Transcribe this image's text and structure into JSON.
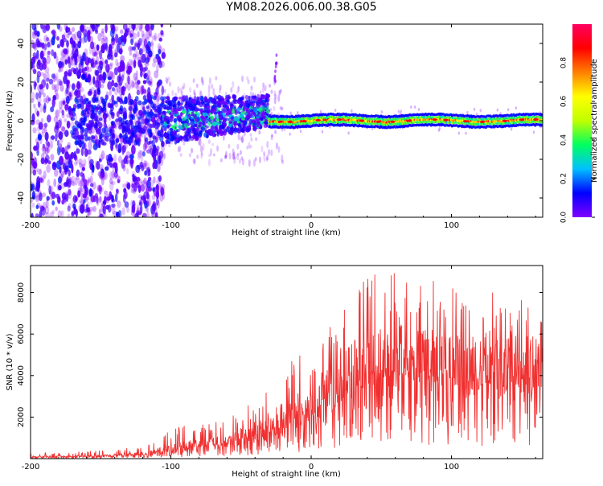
{
  "title": "YM08.2026.006.00.38.G05",
  "colors": {
    "snr_line": "#f03030",
    "axis": "#000000",
    "colorbar_stops": [
      "#8000ff",
      "#0000ff",
      "#00c0ff",
      "#00ff60",
      "#c0ff00",
      "#ffff00",
      "#ff8000",
      "#ff0000",
      "#ff0060"
    ]
  },
  "chart_data": [
    {
      "type": "heatmap",
      "name": "spectrogram",
      "xlabel": "Height of straight line (km)",
      "ylabel": "Frequency (Hz)",
      "xlim": [
        -200,
        165
      ],
      "ylim": [
        -50,
        50
      ],
      "xticks": [
        -200,
        -100,
        0,
        100
      ],
      "yticks": [
        -40,
        -20,
        0,
        20,
        40
      ],
      "colorbar": {
        "label": "Normalized spectral amplitude",
        "range": [
          0,
          1
        ],
        "ticks": [
          "0.0",
          "0.2",
          "0.4",
          "0.6",
          "0.8"
        ]
      },
      "features": {
        "noise_region_x": [
          -200,
          -105
        ],
        "transition_x": [
          -105,
          -30
        ],
        "stable_band_x": [
          -30,
          165
        ],
        "stable_band_center_hz": 0,
        "stable_band_halfwidth_hz": 3,
        "spike_x": -25,
        "spike_freq_range": [
          20,
          34
        ]
      }
    },
    {
      "type": "line",
      "name": "snr",
      "xlabel": "Height of straight line (km)",
      "ylabel": "SNR (10 * v/v)",
      "xlim": [
        -200,
        165
      ],
      "ylim": [
        0,
        9300
      ],
      "xticks": [
        -200,
        -100,
        0,
        100
      ],
      "yticks": [
        2000,
        4000,
        6000,
        8000
      ],
      "envelope": [
        {
          "x": -200,
          "mean": 80,
          "max": 250
        },
        {
          "x": -150,
          "mean": 120,
          "max": 400
        },
        {
          "x": -120,
          "mean": 220,
          "max": 600
        },
        {
          "x": -100,
          "mean": 450,
          "max": 1400
        },
        {
          "x": -80,
          "mean": 650,
          "max": 1900
        },
        {
          "x": -60,
          "mean": 800,
          "max": 1900
        },
        {
          "x": -40,
          "mean": 1200,
          "max": 2800
        },
        {
          "x": -20,
          "mean": 1800,
          "max": 4500
        },
        {
          "x": 0,
          "mean": 2400,
          "max": 5500
        },
        {
          "x": 20,
          "mean": 3400,
          "max": 7000
        },
        {
          "x": 40,
          "mean": 4200,
          "max": 9300
        },
        {
          "x": 60,
          "mean": 4300,
          "max": 9300
        },
        {
          "x": 80,
          "mean": 4500,
          "max": 9000
        },
        {
          "x": 100,
          "mean": 4200,
          "max": 8300
        },
        {
          "x": 130,
          "mean": 4000,
          "max": 8000
        },
        {
          "x": 165,
          "mean": 3900,
          "max": 7500
        }
      ]
    }
  ]
}
